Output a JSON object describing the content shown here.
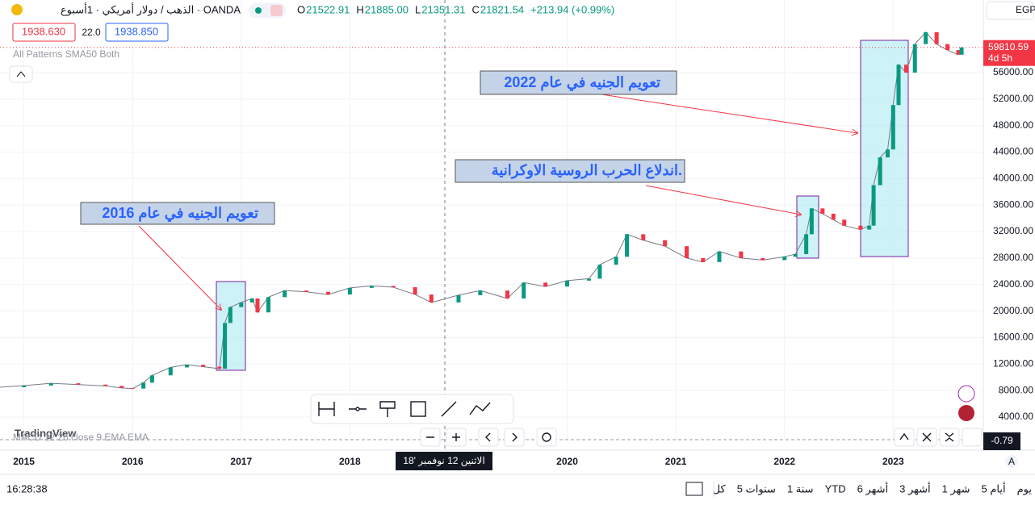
{
  "header": {
    "symbol": "الذهب / دولار أمريكي · 1أسبوع · OANDA",
    "ohlc": [
      {
        "k": "O",
        "v": "21522.91"
      },
      {
        "k": "H",
        "v": "21885.00"
      },
      {
        "k": "L",
        "v": "21351.31"
      },
      {
        "k": "C",
        "v": "21821.54"
      }
    ],
    "change": "+213.94 (+0.99%)",
    "bid": "1938.630",
    "spread": "22.0",
    "ask": "1938.850",
    "indicators": "All Patterns  SMA50 Both",
    "currency": "EGP"
  },
  "chart_data": {
    "type": "candlestick",
    "up_color": "#089981",
    "down_color": "#f23645",
    "x": [
      2014.78,
      2015.0,
      2015.25,
      2015.5,
      2015.75,
      2015.9,
      2016.0,
      2016.1,
      2016.18,
      2016.35,
      2016.5,
      2016.65,
      2016.8,
      2016.85,
      2016.9,
      2017.0,
      2017.1,
      2017.15,
      2017.25,
      2017.4,
      2017.6,
      2017.8,
      2018.0,
      2018.2,
      2018.4,
      2018.6,
      2018.75,
      2019.0,
      2019.2,
      2019.45,
      2019.6,
      2019.8,
      2020.0,
      2020.2,
      2020.3,
      2020.45,
      2020.55,
      2020.7,
      2020.9,
      2021.1,
      2021.25,
      2021.4,
      2021.6,
      2021.8,
      2022.0,
      2022.1,
      2022.2,
      2022.25,
      2022.35,
      2022.45,
      2022.55,
      2022.7,
      2022.78,
      2022.82,
      2022.88,
      2022.95,
      2023.0,
      2023.05,
      2023.12,
      2023.2,
      2023.3,
      2023.4,
      2023.5,
      2023.6,
      2023.63
    ],
    "values": [
      8500,
      8750,
      9100,
      8900,
      8700,
      8400,
      8300,
      9200,
      10300,
      11500,
      11900,
      11600,
      11300,
      18200,
      20600,
      21300,
      21900,
      19800,
      22100,
      23100,
      22900,
      22500,
      23500,
      23800,
      23600,
      22500,
      21300,
      22400,
      23100,
      21900,
      24300,
      23700,
      24600,
      24900,
      27000,
      28200,
      31600,
      30700,
      29800,
      28000,
      27400,
      29000,
      28000,
      27700,
      28200,
      28600,
      31600,
      35500,
      34700,
      33800,
      32900,
      32300,
      32900,
      39000,
      43200,
      44400,
      51100,
      57200,
      56000,
      60300,
      62100,
      60300,
      59400,
      58700,
      59810.59
    ],
    "last_label": "59810.59",
    "countdown": "4d 5h",
    "xlim": [
      2014.78,
      2023.83
    ],
    "xticks": [
      2015,
      2016,
      2017,
      2018,
      2020,
      2021,
      2022,
      2023
    ],
    "ylim": [
      590,
      66960
    ],
    "yticks": [
      {
        "value": 4000,
        "label": "4000.00"
      },
      {
        "value": 8000,
        "label": "8000.00"
      },
      {
        "value": 12000,
        "label": "12000.00"
      },
      {
        "value": 16000,
        "label": "16000.00"
      },
      {
        "value": 20000,
        "label": "20000.00"
      },
      {
        "value": 24000,
        "label": "24000.00"
      },
      {
        "value": 28000,
        "label": "28000.00"
      },
      {
        "value": 32000,
        "label": "32000.00"
      },
      {
        "value": 36000,
        "label": "36000.00"
      },
      {
        "value": 40000,
        "label": "40000.00"
      },
      {
        "value": 44000,
        "label": "44000.00"
      },
      {
        "value": 48000,
        "label": "48000.00"
      },
      {
        "value": 52000,
        "label": "52000.00"
      },
      {
        "value": 56000,
        "label": "56000.00"
      }
    ],
    "grid": true,
    "annotations": [
      "تعويم الجنيه في عام 2016",
      "اندلاع الحرب الروسية الاوكرانية.",
      "تعويم الجنيه في عام 2022"
    ],
    "crosshair_label": "الاثنين 12 نوفمبر '18",
    "indicator": "MACD 12 26 close 9 EMA EMA",
    "indicator_value": "-0.79"
  },
  "footer": {
    "clock": "16:28:38",
    "ranges": [
      "يوم",
      "5 أيام",
      "1 شهر",
      "3 أشهر",
      "6 أشهر",
      "YTD",
      "1 سنة",
      "5 سنوات",
      "كل"
    ],
    "logo": "TradingView",
    "auto": "A"
  }
}
